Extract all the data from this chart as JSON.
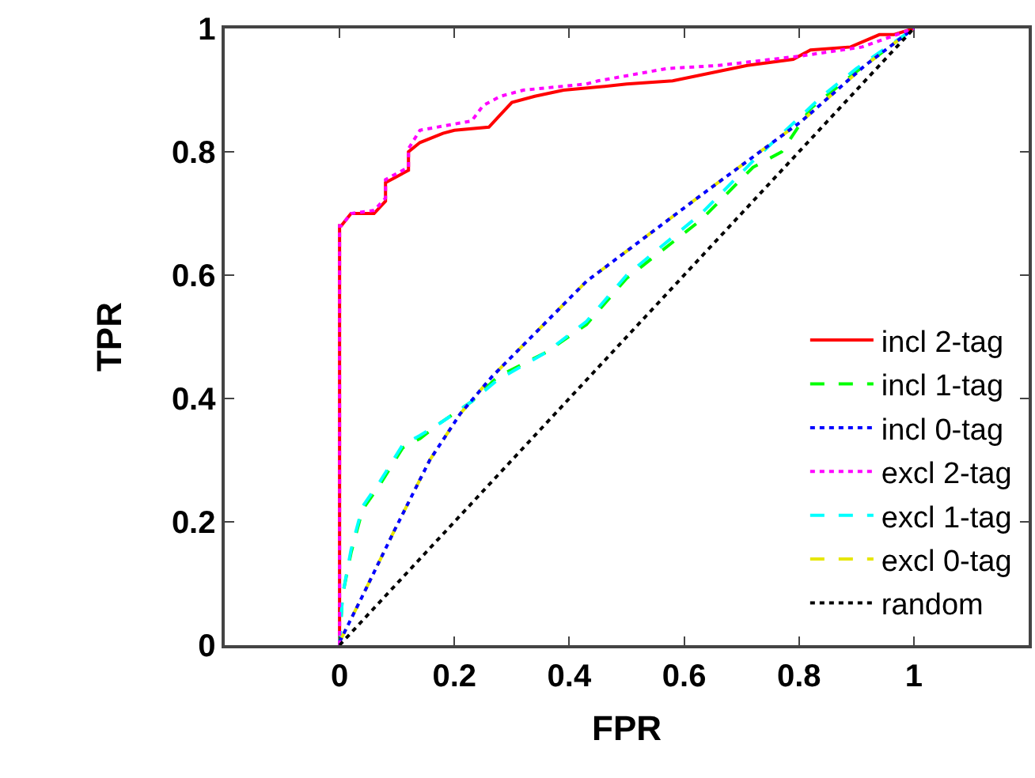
{
  "chart_data": {
    "type": "line",
    "xlabel": "FPR",
    "ylabel": "TPR",
    "xlim": [
      -0.2,
      1.2
    ],
    "ylim": [
      0,
      1
    ],
    "xticks": [
      0,
      0.2,
      0.4,
      0.6,
      0.8,
      1
    ],
    "yticks": [
      0,
      0.2,
      0.4,
      0.6,
      0.8,
      1
    ],
    "legend": "bottom right",
    "series": [
      {
        "name": "incl 2-tag",
        "color": "#ff0000",
        "line_style": "solid",
        "x": [
          0,
          0,
          0.003,
          0.02,
          0.06,
          0.08,
          0.08,
          0.1,
          0.12,
          0.12,
          0.14,
          0.18,
          0.2,
          0.26,
          0.28,
          0.3,
          0.34,
          0.39,
          0.45,
          0.5,
          0.58,
          0.71,
          0.79,
          0.82,
          0.89,
          0.94,
          0.965,
          1
        ],
        "values": [
          0,
          0.68,
          0.68,
          0.7,
          0.7,
          0.72,
          0.75,
          0.76,
          0.77,
          0.8,
          0.815,
          0.83,
          0.835,
          0.84,
          0.86,
          0.88,
          0.89,
          0.9,
          0.905,
          0.91,
          0.915,
          0.94,
          0.95,
          0.965,
          0.97,
          0.99,
          0.99,
          1
        ]
      },
      {
        "name": "incl 1-tag",
        "color": "#00ff00",
        "line_style": "dashed",
        "x": [
          0,
          0.005,
          0.02,
          0.04,
          0.07,
          0.11,
          0.14,
          0.175,
          0.23,
          0.275,
          0.36,
          0.43,
          0.5,
          0.63,
          0.72,
          0.77,
          0.82,
          0.9,
          1
        ],
        "values": [
          0,
          0.08,
          0.15,
          0.22,
          0.26,
          0.32,
          0.335,
          0.36,
          0.395,
          0.435,
          0.475,
          0.52,
          0.595,
          0.69,
          0.775,
          0.8,
          0.87,
          0.93,
          1
        ]
      },
      {
        "name": "incl 0-tag",
        "color": "#0000ff",
        "line_style": "dotted",
        "x": [
          0,
          0.04,
          0.095,
          0.157,
          0.21,
          0.265,
          0.43,
          0.63,
          0.805,
          0.915,
          1
        ],
        "values": [
          0.005,
          0.08,
          0.185,
          0.3,
          0.375,
          0.435,
          0.59,
          0.73,
          0.85,
          0.94,
          1
        ]
      },
      {
        "name": "excl 2-tag",
        "color": "#ff00ff",
        "line_style": "dotted",
        "x": [
          0,
          0,
          0.003,
          0.02,
          0.06,
          0.08,
          0.08,
          0.1,
          0.12,
          0.12,
          0.14,
          0.23,
          0.25,
          0.28,
          0.32,
          0.43,
          0.45,
          0.57,
          0.66,
          0.8,
          0.91,
          1
        ],
        "values": [
          0,
          0.68,
          0.68,
          0.7,
          0.705,
          0.725,
          0.755,
          0.765,
          0.775,
          0.805,
          0.835,
          0.85,
          0.875,
          0.89,
          0.9,
          0.91,
          0.915,
          0.935,
          0.94,
          0.955,
          0.97,
          1
        ]
      },
      {
        "name": "excl 1-tag",
        "color": "#00ffff",
        "line_style": "dashed",
        "x": [
          0,
          0.005,
          0.02,
          0.04,
          0.07,
          0.11,
          0.14,
          0.175,
          0.23,
          0.275,
          0.36,
          0.43,
          0.5,
          0.63,
          0.72,
          0.84,
          0.9,
          1
        ],
        "values": [
          0,
          0.08,
          0.155,
          0.225,
          0.265,
          0.325,
          0.34,
          0.36,
          0.395,
          0.43,
          0.475,
          0.525,
          0.6,
          0.7,
          0.785,
          0.89,
          0.935,
          1
        ]
      },
      {
        "name": "excl 0-tag",
        "color": "#e6e600",
        "line_style": "dashed",
        "x": [
          0,
          0.04,
          0.095,
          0.157,
          0.21,
          0.265,
          0.43,
          0.63,
          0.805,
          0.915,
          1
        ],
        "values": [
          0.005,
          0.08,
          0.185,
          0.3,
          0.375,
          0.435,
          0.59,
          0.73,
          0.85,
          0.94,
          1
        ]
      },
      {
        "name": "random",
        "color": "#000000",
        "line_style": "dotted",
        "x": [
          0,
          1
        ],
        "values": [
          0,
          1
        ]
      }
    ]
  }
}
